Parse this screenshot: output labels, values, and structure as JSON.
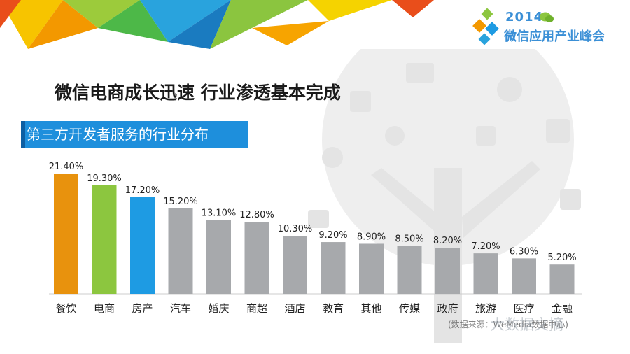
{
  "logo": {
    "year": "2014",
    "name": "微信应用产业峰会"
  },
  "title": "微信电商成长迅速 行业渗透基本完成",
  "subtitle": "第三方开发者服务的行业分布",
  "source_note": "(数据来源：WeMedia数据中心)",
  "watermark": "大数据文摘",
  "colors": {
    "orange": "#e8920d",
    "green": "#8cc63f",
    "blue": "#1e9be3",
    "gray": "#a7a9ac",
    "subtitle_bg": "#1e8fdc"
  },
  "chart_data": {
    "type": "bar",
    "categories": [
      "餐饮",
      "电商",
      "房产",
      "汽车",
      "婚庆",
      "商超",
      "酒店",
      "教育",
      "其他",
      "传媒",
      "政府",
      "旅游",
      "医疗",
      "金融"
    ],
    "values": [
      21.4,
      19.3,
      17.2,
      15.2,
      13.1,
      12.8,
      10.3,
      9.2,
      8.9,
      8.5,
      8.2,
      7.2,
      6.3,
      5.2
    ],
    "value_labels": [
      "21.40%",
      "19.30%",
      "17.20%",
      "15.20%",
      "13.10%",
      "12.80%",
      "10.30%",
      "9.20%",
      "8.90%",
      "8.50%",
      "8.20%",
      "7.20%",
      "6.30%",
      "5.20%"
    ],
    "bar_colors": [
      "#e8920d",
      "#8cc63f",
      "#1e9be3",
      "#a7a9ac",
      "#a7a9ac",
      "#a7a9ac",
      "#a7a9ac",
      "#a7a9ac",
      "#a7a9ac",
      "#a7a9ac",
      "#a7a9ac",
      "#a7a9ac",
      "#a7a9ac",
      "#a7a9ac"
    ],
    "ylim": [
      0,
      22
    ],
    "grid": false,
    "legend": "none"
  }
}
